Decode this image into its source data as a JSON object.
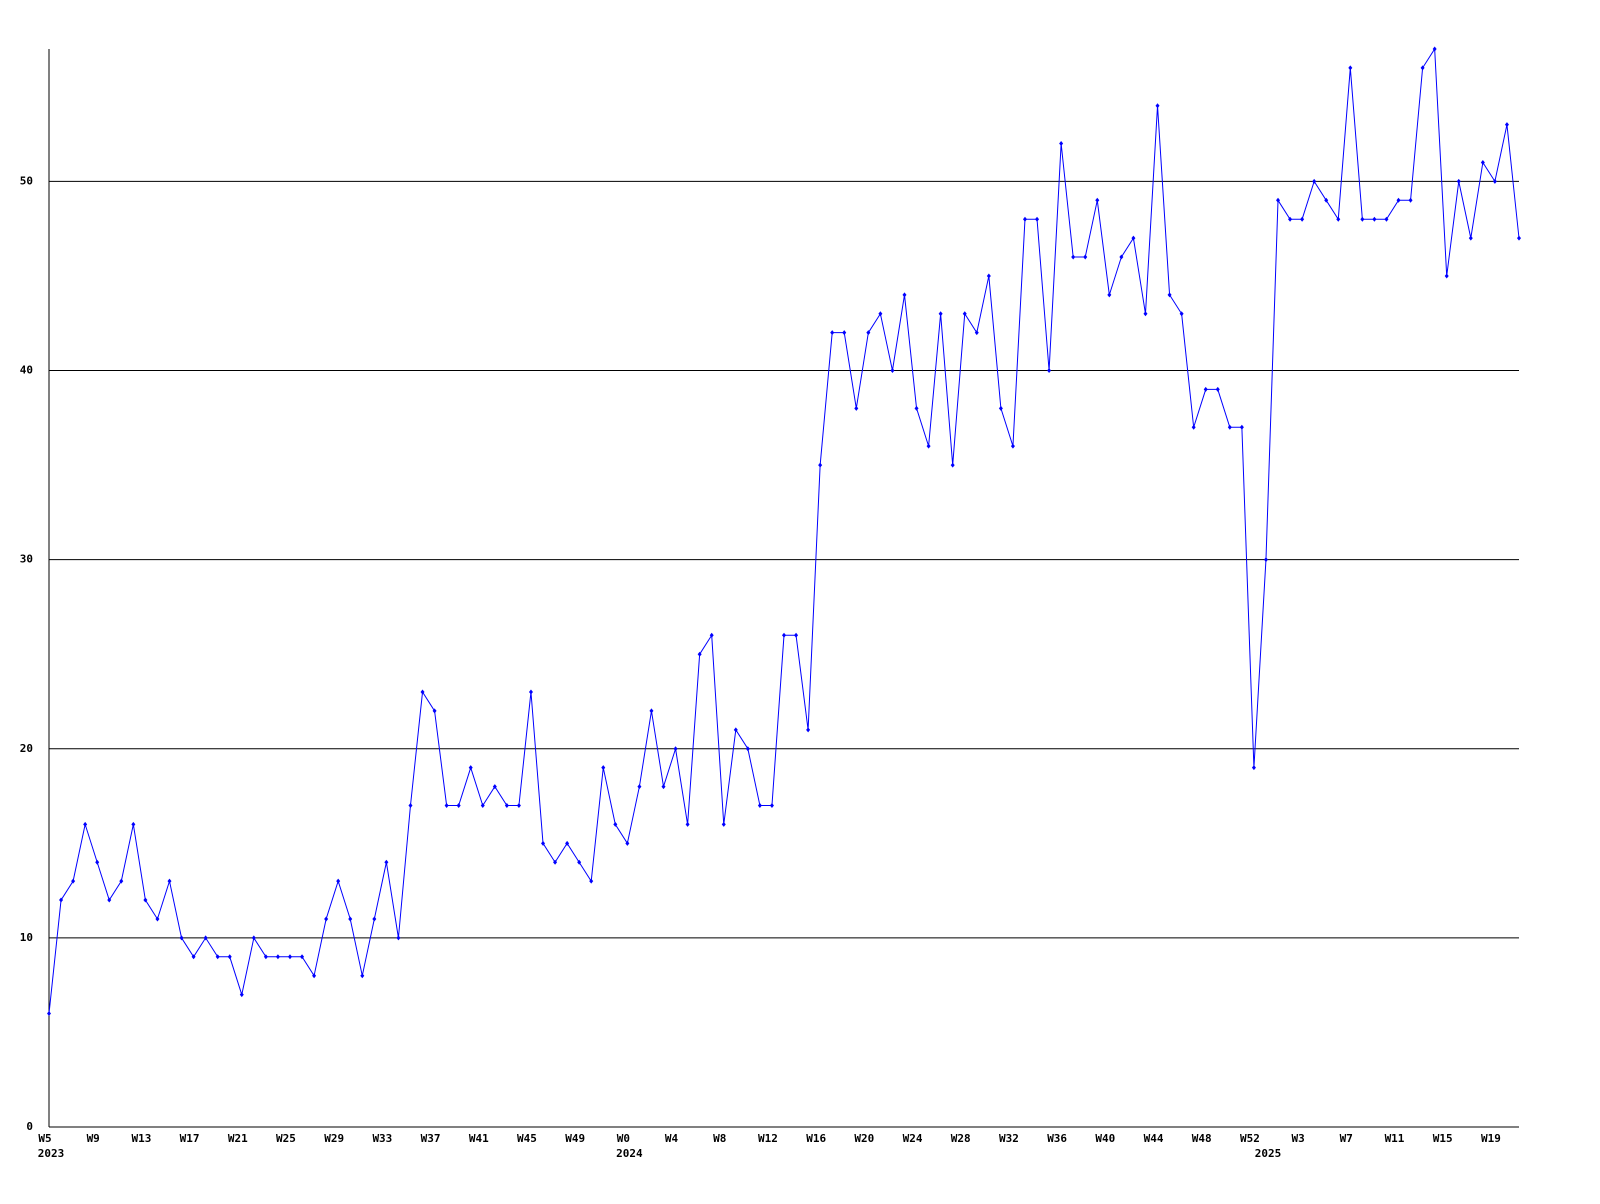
{
  "chart_data": {
    "type": "line",
    "categories": [
      "W5",
      null,
      null,
      null,
      "W9",
      null,
      null,
      null,
      "W13",
      null,
      null,
      null,
      "W17",
      null,
      null,
      null,
      "W21",
      null,
      null,
      null,
      "W25",
      null,
      null,
      null,
      "W29",
      null,
      null,
      null,
      "W33",
      null,
      null,
      null,
      "W37",
      null,
      null,
      null,
      "W41",
      null,
      null,
      null,
      "W45",
      null,
      null,
      null,
      "W49",
      null,
      null,
      null,
      "W0",
      null,
      null,
      null,
      "W4",
      null,
      null,
      null,
      "W8",
      null,
      null,
      null,
      "W12",
      null,
      null,
      null,
      "W16",
      null,
      null,
      null,
      "W20",
      null,
      null,
      null,
      "W24",
      null,
      null,
      null,
      "W28",
      null,
      null,
      null,
      "W32",
      null,
      null,
      null,
      "W36",
      null,
      null,
      null,
      "W40",
      null,
      null,
      null,
      "W44",
      null,
      null,
      null,
      "W48",
      null,
      null,
      null,
      "W52",
      null,
      null,
      null,
      "W3",
      null,
      null,
      null,
      "W7",
      null,
      null,
      null,
      "W11",
      null,
      null,
      null,
      "W15",
      null,
      null,
      null,
      "W19",
      null,
      null
    ],
    "year_labels": [
      "2023",
      null,
      null,
      null,
      null,
      null,
      null,
      null,
      null,
      null,
      null,
      null,
      null,
      null,
      null,
      null,
      null,
      null,
      null,
      null,
      null,
      null,
      null,
      null,
      null,
      null,
      null,
      null,
      null,
      null,
      null,
      null,
      null,
      null,
      null,
      null,
      null,
      null,
      null,
      null,
      null,
      null,
      null,
      null,
      null,
      null,
      null,
      null,
      "2024",
      null,
      null,
      null,
      null,
      null,
      null,
      null,
      null,
      null,
      null,
      null,
      null,
      null,
      null,
      null,
      null,
      null,
      null,
      null,
      null,
      null,
      null,
      null,
      null,
      null,
      null,
      null,
      null,
      null,
      null,
      null,
      null,
      null,
      null,
      null,
      null,
      null,
      null,
      null,
      null,
      null,
      null,
      null,
      null,
      null,
      null,
      null,
      null,
      null,
      null,
      null,
      null,
      "2025",
      null,
      null,
      null,
      null,
      null,
      null,
      null,
      null,
      null,
      null,
      null,
      null,
      null,
      null,
      null,
      null,
      null,
      null,
      null,
      null,
      null
    ],
    "series": [
      {
        "color": "#0000ff",
        "values": [
          6,
          12,
          13,
          16,
          14,
          12,
          13,
          16,
          12,
          11,
          13,
          10,
          9,
          10,
          9,
          9,
          7,
          10,
          9,
          9,
          9,
          9,
          8,
          11,
          13,
          11,
          8,
          11,
          14,
          10,
          17,
          23,
          22,
          17,
          17,
          19,
          17,
          18,
          17,
          17,
          23,
          15,
          14,
          15,
          14,
          13,
          19,
          16,
          15,
          18,
          22,
          18,
          20,
          16,
          25,
          26,
          16,
          21,
          20,
          17,
          17,
          26,
          26,
          21,
          35,
          42,
          42,
          38,
          42,
          43,
          40,
          44,
          38,
          36,
          43,
          35,
          43,
          42,
          45,
          38,
          36,
          48,
          48,
          40,
          52,
          46,
          46,
          49,
          44,
          46,
          47,
          43,
          54,
          44,
          43,
          37,
          39,
          39,
          37,
          37,
          19,
          30,
          49,
          48,
          48,
          50,
          49,
          48,
          56,
          48,
          48,
          48,
          49,
          49,
          56,
          57,
          45,
          50,
          47,
          51,
          50,
          53,
          47
        ]
      }
    ],
    "ylim": [
      0,
      57
    ],
    "yticks": [
      0,
      10,
      20,
      30,
      40,
      50
    ],
    "grid": true
  }
}
